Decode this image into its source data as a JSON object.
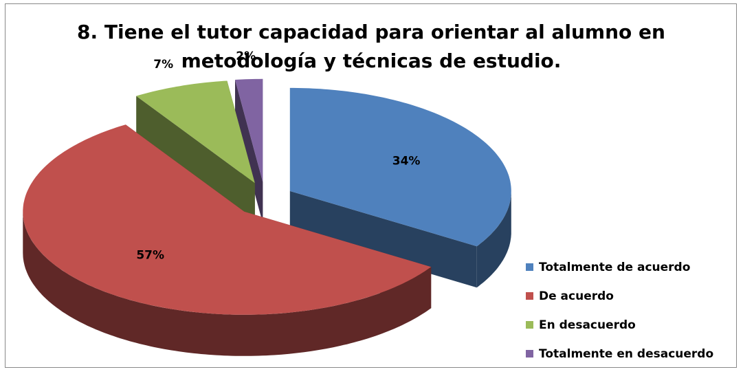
{
  "chart_data": {
    "type": "pie",
    "title": "8. Tiene el tutor capacidad para orientar al alumno en metodología y técnicas de estudio.",
    "categories": [
      "Totalmente de acuerdo",
      "De acuerdo",
      "En desacuerdo",
      "Totalmente en desacuerdo"
    ],
    "values": [
      34,
      57,
      7,
      2
    ],
    "value_labels": [
      "34%",
      "57%",
      "7%",
      "2%"
    ],
    "colors": [
      "#4f81bd",
      "#c0504d",
      "#9bbb59",
      "#8064a2"
    ],
    "legend": "right"
  }
}
